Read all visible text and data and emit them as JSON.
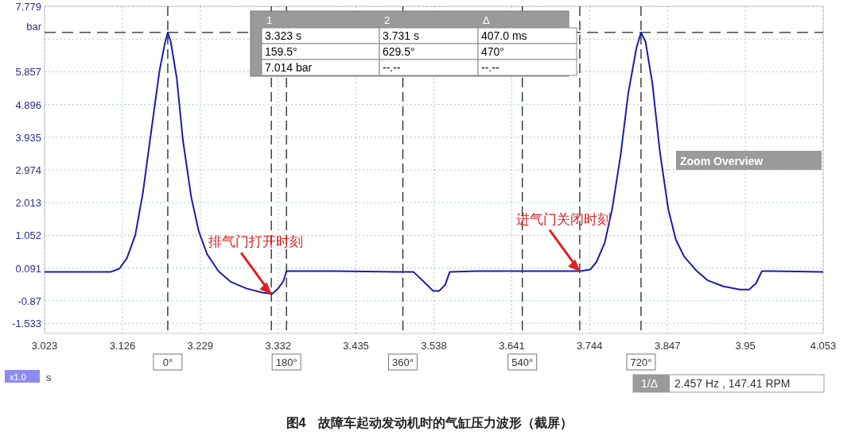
{
  "chart_data": {
    "type": "line",
    "title": "图4　故障车起动发动机时的气缸压力波形（截屏）",
    "xlabel": "s",
    "ylabel": "bar",
    "x": [
      3.023,
      3.111,
      3.122,
      3.132,
      3.143,
      3.153,
      3.164,
      3.175,
      3.182,
      3.186,
      3.19,
      3.198,
      3.206,
      3.217,
      3.227,
      3.238,
      3.253,
      3.269,
      3.29,
      3.311,
      3.324,
      3.332,
      3.339,
      3.343,
      3.364,
      3.406,
      3.49,
      3.511,
      3.527,
      3.537,
      3.545,
      3.553,
      3.559,
      3.595,
      3.701,
      3.732,
      3.745,
      3.753,
      3.764,
      3.774,
      3.785,
      3.795,
      3.806,
      3.812,
      3.818,
      3.827,
      3.837,
      3.848,
      3.858,
      3.869,
      3.885,
      3.9,
      3.921,
      3.943,
      3.955,
      3.964,
      3.972,
      3.985,
      4.053
    ],
    "series": [
      {
        "color": "#1c1ca8",
        "values": [
          -0.02,
          -0.02,
          0.07,
          0.38,
          1.06,
          2.29,
          4.09,
          5.88,
          6.67,
          7.01,
          6.74,
          5.66,
          3.86,
          2.18,
          1.17,
          0.5,
          0.0,
          -0.31,
          -0.51,
          -0.63,
          -0.67,
          -0.51,
          -0.29,
          0.0,
          0.0,
          0.0,
          -0.02,
          -0.02,
          -0.36,
          -0.58,
          -0.58,
          -0.4,
          -0.02,
          0.0,
          0.0,
          0.0,
          0.05,
          0.27,
          0.83,
          1.84,
          3.41,
          5.21,
          6.56,
          7.01,
          6.74,
          5.52,
          3.5,
          1.82,
          0.93,
          0.43,
          0.02,
          -0.27,
          -0.45,
          -0.54,
          -0.54,
          -0.36,
          0.0,
          0.0,
          -0.02
        ]
      }
    ],
    "xlim": [
      3.023,
      4.053
    ],
    "ylim": [
      -1.83,
      7.779
    ],
    "xticks": [
      3.023,
      3.126,
      3.229,
      3.332,
      3.435,
      3.538,
      3.641,
      3.744,
      3.847,
      3.95,
      4.053
    ],
    "yticks": [
      -1.533,
      -0.87,
      0.091,
      1.052,
      2.013,
      2.974,
      3.935,
      4.896,
      5.857,
      {
        "value": 6.818,
        "label": null
      },
      7.779
    ],
    "grid": true,
    "ref_lines": [
      {
        "axis": "x",
        "value": 3.186,
        "label": null
      },
      {
        "axis": "x",
        "value": 3.343,
        "label": null
      },
      {
        "axis": "x",
        "value": 3.497,
        "label": null
      },
      {
        "axis": "x",
        "value": 3.655,
        "label": null
      },
      {
        "axis": "x",
        "value": 3.812,
        "label": null
      },
      {
        "axis": "x",
        "value": 3.323,
        "label": null
      },
      {
        "axis": "x",
        "value": 3.731,
        "label": null
      },
      {
        "axis": "y",
        "value": 7.014,
        "label": null
      }
    ],
    "annotations": [
      "1",
      "2",
      "Δ",
      "3.323 s",
      "3.731 s",
      "407.0 ms",
      "159.5°",
      "629.5°",
      "470°",
      "7.014 bar",
      "--.--",
      "--.--",
      "排气门打开时刻",
      "进气门关闭时刻",
      "Zoom Overview",
      "x1.0",
      "1/Δ",
      "2.457 Hz , 147.41 RPM",
      "0°",
      "180°",
      "360°",
      "540°",
      "720°"
    ]
  }
}
